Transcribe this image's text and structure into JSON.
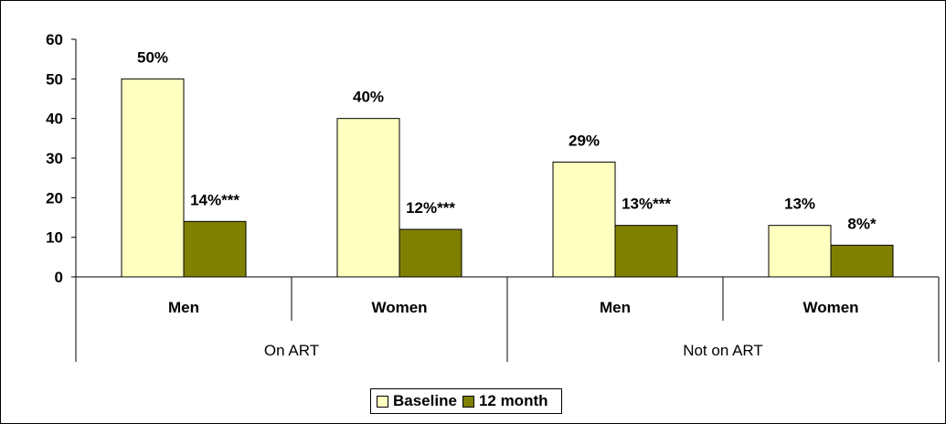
{
  "chart_data": {
    "type": "bar",
    "ylim": [
      0,
      60
    ],
    "yticks": [
      "0",
      "10",
      "20",
      "30",
      "40",
      "50",
      "60"
    ],
    "categories": [
      "Men",
      "Women",
      "Men",
      "Women"
    ],
    "groups": [
      {
        "label": "On ART",
        "categories": [
          "Men",
          "Women"
        ]
      },
      {
        "label": "Not on ART",
        "categories": [
          "Men",
          "Women"
        ]
      }
    ],
    "series": [
      {
        "name": "Baseline",
        "color": "#FFFFC0",
        "values": [
          50,
          40,
          29,
          13
        ],
        "labels": [
          "50%",
          "40%",
          "29%",
          "13%"
        ]
      },
      {
        "name": "12 month",
        "color": "#808000",
        "values": [
          14,
          12,
          13,
          8
        ],
        "labels": [
          "14%***",
          "12%***",
          "13%***",
          "8%*"
        ]
      }
    ],
    "legend_position": "bottom",
    "grid": false
  }
}
